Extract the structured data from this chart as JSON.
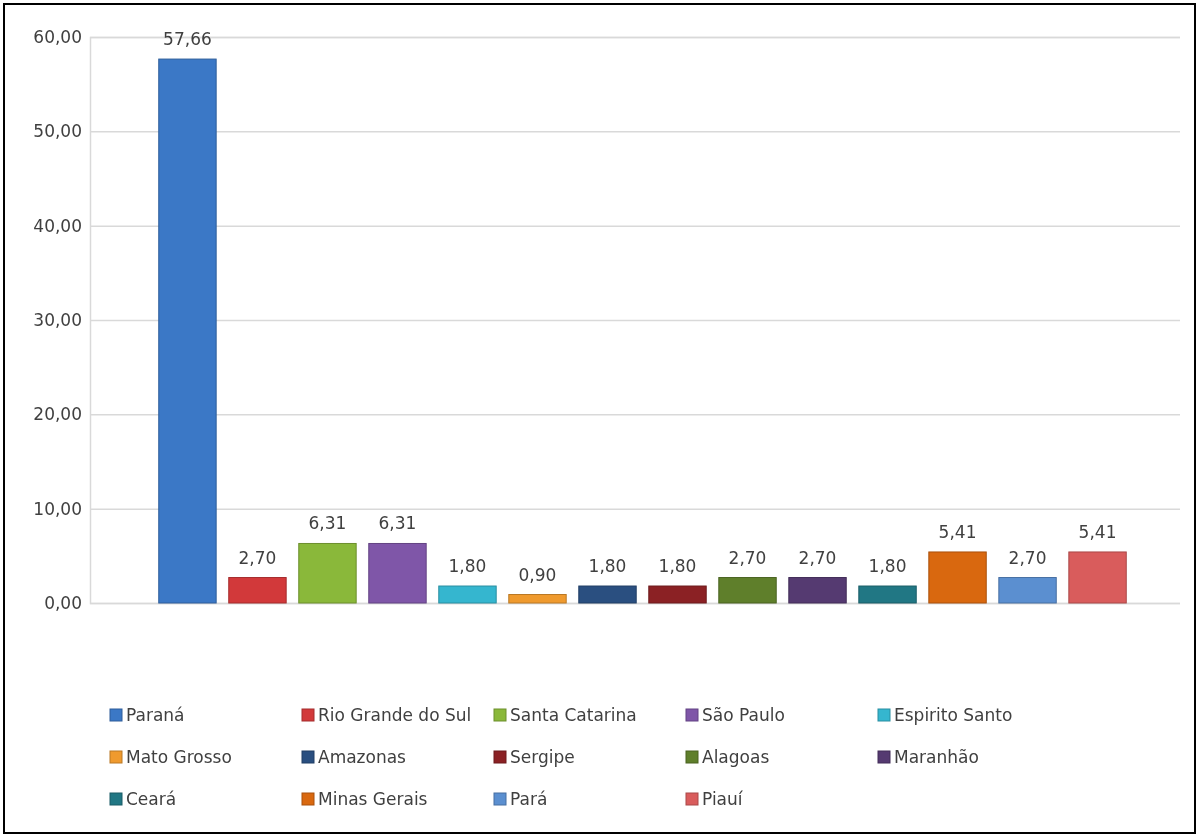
{
  "chart_data": {
    "type": "bar",
    "categories": [
      null
    ],
    "series": [
      {
        "name": "Paraná",
        "color": "#3b78c6",
        "values": [
          57.66
        ],
        "value_labels": [
          "57,66"
        ]
      },
      {
        "name": "Rio Grande do Sul",
        "color": "#d2393a",
        "values": [
          2.7
        ],
        "value_labels": [
          "2,70"
        ]
      },
      {
        "name": "Santa Catarina",
        "color": "#8ab83a",
        "values": [
          6.31
        ],
        "value_labels": [
          "6,31"
        ]
      },
      {
        "name": "São Paulo",
        "color": "#7f56a8",
        "values": [
          6.31
        ],
        "value_labels": [
          "6,31"
        ]
      },
      {
        "name": "Espirito Santo",
        "color": "#35b6cf",
        "values": [
          1.8
        ],
        "value_labels": [
          "1,80"
        ]
      },
      {
        "name": "Mato Grosso",
        "color": "#ef9a2e",
        "values": [
          0.9
        ],
        "value_labels": [
          "0,90"
        ]
      },
      {
        "name": "Amazonas",
        "color": "#2a4f80",
        "values": [
          1.8
        ],
        "value_labels": [
          "1,80"
        ]
      },
      {
        "name": "Sergipe",
        "color": "#8b2124",
        "values": [
          1.8
        ],
        "value_labels": [
          "1,80"
        ]
      },
      {
        "name": "Alagoas",
        "color": "#5f7f2b",
        "values": [
          2.7
        ],
        "value_labels": [
          "2,70"
        ]
      },
      {
        "name": "Maranhão",
        "color": "#553a71",
        "values": [
          2.7
        ],
        "value_labels": [
          "2,70"
        ]
      },
      {
        "name": "Ceará",
        "color": "#217784",
        "values": [
          1.8
        ],
        "value_labels": [
          "1,80"
        ]
      },
      {
        "name": "Minas Gerais",
        "color": "#d9680f",
        "values": [
          5.41
        ],
        "value_labels": [
          "5,41"
        ]
      },
      {
        "name": "Pará",
        "color": "#5b8fd0",
        "values": [
          2.7
        ],
        "value_labels": [
          "2,70"
        ]
      },
      {
        "name": "Piauí",
        "color": "#d95c5c",
        "values": [
          5.41
        ],
        "value_labels": [
          "5,41"
        ]
      }
    ],
    "ylim": [
      0,
      60
    ],
    "yticks": [
      {
        "value": 0,
        "label": "0,00"
      },
      {
        "value": 10,
        "label": "10,00"
      },
      {
        "value": 20,
        "label": "20,00"
      },
      {
        "value": 30,
        "label": "30,00"
      },
      {
        "value": 40,
        "label": "40,00"
      },
      {
        "value": 50,
        "label": "50,00"
      },
      {
        "value": 60,
        "label": "60,00"
      }
    ],
    "grid": "y",
    "legend": "bottom",
    "tick_labels": "y"
  }
}
